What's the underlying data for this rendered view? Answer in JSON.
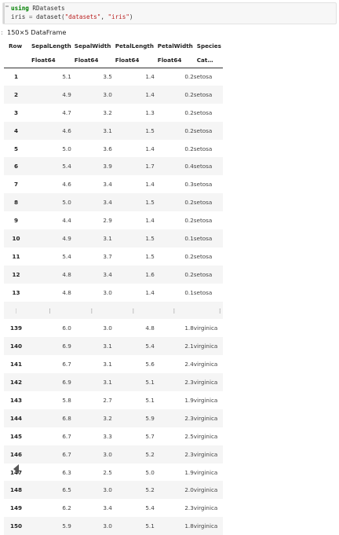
{
  "code_cell": {
    "line1_kw": "using",
    "line1_rest": " RDatasets",
    "line2_var": "iris",
    "line2_eq": " = ",
    "line2_fn": "dataset(",
    "line2_arg1": "\"datasets\"",
    "line2_sep": ", ",
    "line2_arg2": "\"iris\"",
    "line2_close": ")"
  },
  "output": {
    "dataframe_label": "150×5 DataFrame"
  },
  "table": {
    "headers": [
      "Row",
      "SepalLength",
      "SepalWidth",
      "PetalLength",
      "PetalWidth",
      "Species"
    ],
    "types": [
      "",
      "Float64",
      "Float64",
      "Float64",
      "Float64",
      "Cat…"
    ],
    "ellipsis": "⋮",
    "top_rows": [
      [
        "1",
        "5.1",
        "3.5",
        "1.4",
        "0.2",
        "setosa"
      ],
      [
        "2",
        "4.9",
        "3.0",
        "1.4",
        "0.2",
        "setosa"
      ],
      [
        "3",
        "4.7",
        "3.2",
        "1.3",
        "0.2",
        "setosa"
      ],
      [
        "4",
        "4.6",
        "3.1",
        "1.5",
        "0.2",
        "setosa"
      ],
      [
        "5",
        "5.0",
        "3.6",
        "1.4",
        "0.2",
        "setosa"
      ],
      [
        "6",
        "5.4",
        "3.9",
        "1.7",
        "0.4",
        "setosa"
      ],
      [
        "7",
        "4.6",
        "3.4",
        "1.4",
        "0.3",
        "setosa"
      ],
      [
        "8",
        "5.0",
        "3.4",
        "1.5",
        "0.2",
        "setosa"
      ],
      [
        "9",
        "4.4",
        "2.9",
        "1.4",
        "0.2",
        "setosa"
      ],
      [
        "10",
        "4.9",
        "3.1",
        "1.5",
        "0.1",
        "setosa"
      ],
      [
        "11",
        "5.4",
        "3.7",
        "1.5",
        "0.2",
        "setosa"
      ],
      [
        "12",
        "4.8",
        "3.4",
        "1.6",
        "0.2",
        "setosa"
      ],
      [
        "13",
        "4.8",
        "3.0",
        "1.4",
        "0.1",
        "setosa"
      ]
    ],
    "bottom_rows": [
      [
        "139",
        "6.0",
        "3.0",
        "4.8",
        "1.8",
        "virginica"
      ],
      [
        "140",
        "6.9",
        "3.1",
        "5.4",
        "2.1",
        "virginica"
      ],
      [
        "141",
        "6.7",
        "3.1",
        "5.6",
        "2.4",
        "virginica"
      ],
      [
        "142",
        "6.9",
        "3.1",
        "5.1",
        "2.3",
        "virginica"
      ],
      [
        "143",
        "5.8",
        "2.7",
        "5.1",
        "1.9",
        "virginica"
      ],
      [
        "144",
        "6.8",
        "3.2",
        "5.9",
        "2.3",
        "virginica"
      ],
      [
        "145",
        "6.7",
        "3.3",
        "5.7",
        "2.5",
        "virginica"
      ],
      [
        "146",
        "6.7",
        "3.0",
        "5.2",
        "2.3",
        "virginica"
      ],
      [
        "147",
        "6.3",
        "2.5",
        "5.0",
        "1.9",
        "virginica"
      ],
      [
        "148",
        "6.5",
        "3.0",
        "5.2",
        "2.0",
        "virginica"
      ],
      [
        "149",
        "6.2",
        "3.4",
        "5.4",
        "2.3",
        "virginica"
      ],
      [
        "150",
        "5.9",
        "3.0",
        "5.1",
        "1.8",
        "virginica"
      ]
    ]
  },
  "icons": {
    "scroll_left": "triangle-left-icon"
  }
}
